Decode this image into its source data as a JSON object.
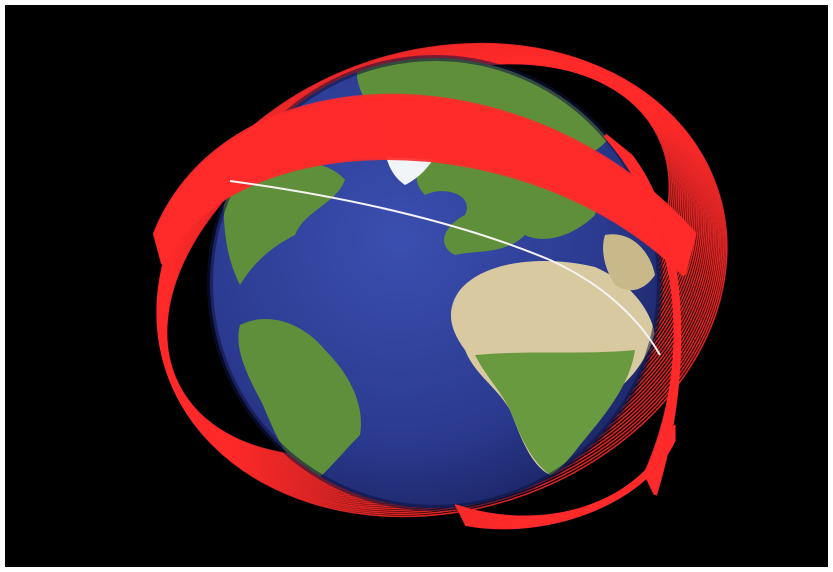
{
  "image": {
    "subject": "earth-globe-with-orbit-debris-rings",
    "colors": {
      "frame_background": "#ffffff",
      "space_background": "#000000",
      "ocean": "#2b3a8f",
      "land_green": "#5f8f3a",
      "land_desert": "#d9c9a0",
      "ice": "#f2f5f8",
      "orbit_rings": "#ff2a2a",
      "single_track": "#f4f4f4"
    }
  }
}
